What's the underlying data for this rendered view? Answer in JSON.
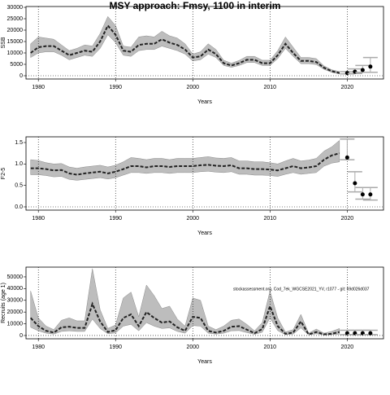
{
  "chart_data": [
    {
      "type": "band-line",
      "title": "MSY approach: Fmsy, 1100 in interim",
      "ylabel": "SSB",
      "xlabel": "Years",
      "xlim": [
        1978.4,
        2024.7
      ],
      "xticks": [
        1980,
        1990,
        2000,
        2010,
        2020
      ],
      "ylim": [
        -1430,
        30360
      ],
      "yticks": [
        0,
        5000,
        10000,
        15000,
        20000,
        25000,
        30000
      ],
      "grid": true,
      "x": [
        1979,
        1980,
        1981,
        1982,
        1983,
        1984,
        1985,
        1986,
        1987,
        1988,
        1989,
        1990,
        1991,
        1992,
        1993,
        1994,
        1995,
        1996,
        1997,
        1998,
        1999,
        2000,
        2001,
        2002,
        2003,
        2004,
        2005,
        2006,
        2007,
        2008,
        2009,
        2010,
        2011,
        2012,
        2013,
        2014,
        2015,
        2016,
        2017,
        2018,
        2019
      ],
      "values": [
        10000,
        12500,
        13000,
        13000,
        11000,
        9000,
        10000,
        11000,
        10500,
        15000,
        22000,
        18000,
        11000,
        10500,
        13500,
        14000,
        14000,
        16000,
        14500,
        13500,
        11500,
        8000,
        8500,
        11500,
        9500,
        5500,
        4500,
        5500,
        7000,
        7000,
        5500,
        5500,
        9000,
        14000,
        10000,
        6500,
        6500,
        6000,
        3500,
        2000,
        1200
      ],
      "lower": [
        8000,
        10000,
        10500,
        10500,
        9000,
        7000,
        8000,
        9000,
        8500,
        12000,
        18000,
        14500,
        9000,
        8500,
        11000,
        11500,
        11500,
        13000,
        12000,
        11000,
        9500,
        6500,
        7000,
        9500,
        8000,
        4500,
        3700,
        4500,
        5800,
        5800,
        4500,
        4500,
        7500,
        12000,
        8500,
        5300,
        5300,
        4900,
        2800,
        1500,
        800
      ],
      "upper": [
        14000,
        17000,
        16500,
        16000,
        13500,
        11000,
        12000,
        13500,
        13000,
        18500,
        26000,
        22000,
        13000,
        12500,
        17000,
        17500,
        17000,
        19500,
        17500,
        16500,
        14000,
        9500,
        10500,
        14000,
        11500,
        6800,
        5500,
        6700,
        8500,
        8500,
        6800,
        6800,
        11000,
        17000,
        12500,
        8000,
        8000,
        7500,
        4300,
        2600,
        1800
      ],
      "projection": {
        "x": [
          2020,
          2021,
          2022,
          2023
        ],
        "values": [
          1200,
          1800,
          2500,
          4000
        ],
        "lower": [
          800,
          1000,
          1500,
          1500
        ],
        "upper": [
          1800,
          3000,
          4500,
          8000
        ]
      }
    },
    {
      "type": "band-line",
      "ylabel": "F2-5",
      "xlabel": "Years",
      "xlim": [
        1978.4,
        2024.7
      ],
      "xticks": [
        1980,
        1990,
        2000,
        2010,
        2020
      ],
      "ylim": [
        -0.076,
        1.633
      ],
      "yticks": [
        {
          "value": 0,
          "label": "0.0"
        },
        0.5,
        {
          "value": 1,
          "label": "1.0"
        },
        1.5
      ],
      "grid": true,
      "x": [
        1979,
        1980,
        1981,
        1982,
        1983,
        1984,
        1985,
        1986,
        1987,
        1988,
        1989,
        1990,
        1991,
        1992,
        1993,
        1994,
        1995,
        1996,
        1997,
        1998,
        1999,
        2000,
        2001,
        2002,
        2003,
        2004,
        2005,
        2006,
        2007,
        2008,
        2009,
        2010,
        2011,
        2012,
        2013,
        2014,
        2015,
        2016,
        2017,
        2018,
        2019
      ],
      "values": [
        0.9,
        0.9,
        0.88,
        0.85,
        0.86,
        0.78,
        0.75,
        0.78,
        0.8,
        0.82,
        0.78,
        0.82,
        0.88,
        0.95,
        0.95,
        0.92,
        0.95,
        0.95,
        0.93,
        0.95,
        0.95,
        0.95,
        0.97,
        0.98,
        0.96,
        0.95,
        0.97,
        0.9,
        0.9,
        0.88,
        0.88,
        0.87,
        0.85,
        0.9,
        0.95,
        0.9,
        0.92,
        0.95,
        1.1,
        1.2,
        1.25
      ],
      "lower": [
        0.75,
        0.75,
        0.73,
        0.7,
        0.71,
        0.64,
        0.62,
        0.64,
        0.66,
        0.68,
        0.65,
        0.68,
        0.74,
        0.8,
        0.8,
        0.78,
        0.8,
        0.8,
        0.78,
        0.8,
        0.8,
        0.8,
        0.82,
        0.83,
        0.81,
        0.8,
        0.82,
        0.76,
        0.76,
        0.74,
        0.74,
        0.73,
        0.71,
        0.76,
        0.8,
        0.76,
        0.78,
        0.8,
        0.95,
        1.02,
        1.05
      ],
      "upper": [
        1.1,
        1.08,
        1.03,
        1.0,
        1.01,
        0.93,
        0.9,
        0.93,
        0.95,
        0.97,
        0.93,
        0.97,
        1.05,
        1.15,
        1.13,
        1.1,
        1.13,
        1.13,
        1.1,
        1.13,
        1.13,
        1.13,
        1.15,
        1.17,
        1.14,
        1.13,
        1.15,
        1.07,
        1.07,
        1.05,
        1.05,
        1.03,
        1.0,
        1.07,
        1.13,
        1.07,
        1.09,
        1.13,
        1.3,
        1.4,
        1.55
      ],
      "projection": {
        "x": [
          2020,
          2021,
          2022,
          2023
        ],
        "values": [
          1.15,
          0.55,
          0.29,
          0.29
        ],
        "lower": [
          1.1,
          0.35,
          0.18,
          0.16
        ],
        "upper": [
          1.58,
          0.82,
          0.45,
          0.45
        ]
      }
    },
    {
      "type": "band-line",
      "ylabel": "Recruits (age 1)",
      "xlabel": "Years",
      "annotation": "stockassessment.org, Cod_7ek_WGCSE2021_YV, r1077 - git: 69d026d037",
      "xlim": [
        1978.4,
        2024.7
      ],
      "xticks": [
        1980,
        1990,
        2000,
        2010,
        2020
      ],
      "ylim": [
        -2800,
        58300
      ],
      "yticks": [
        0,
        10000,
        20000,
        30000,
        40000,
        50000
      ],
      "grid": true,
      "x": [
        1979,
        1980,
        1981,
        1982,
        1983,
        1984,
        1985,
        1986,
        1987,
        1988,
        1989,
        1990,
        1991,
        1992,
        1993,
        1994,
        1995,
        1996,
        1997,
        1998,
        1999,
        2000,
        2001,
        2002,
        2003,
        2004,
        2005,
        2006,
        2007,
        2008,
        2009,
        2010,
        2011,
        2012,
        2013,
        2014,
        2015,
        2016,
        2017,
        2018,
        2019
      ],
      "values": [
        15000,
        8000,
        4000,
        2500,
        7000,
        7500,
        6500,
        6500,
        27000,
        12000,
        3000,
        4500,
        15000,
        18000,
        8000,
        20000,
        15000,
        11000,
        12000,
        7000,
        4000,
        16000,
        15000,
        4000,
        2500,
        4000,
        7500,
        8000,
        5000,
        2000,
        5500,
        25000,
        8000,
        1500,
        2500,
        12000,
        1000,
        3000,
        1000,
        1500,
        3000
      ],
      "lower": [
        7000,
        4000,
        2000,
        1200,
        3500,
        4000,
        3500,
        3500,
        14000,
        6000,
        1500,
        2200,
        8000,
        9500,
        4000,
        11000,
        8000,
        6000,
        6500,
        3500,
        2000,
        8500,
        8000,
        2000,
        1200,
        2000,
        4000,
        4200,
        2500,
        1000,
        2800,
        15000,
        4200,
        700,
        1200,
        6500,
        500,
        1500,
        500,
        700,
        1200
      ],
      "upper": [
        38000,
        15000,
        8000,
        5000,
        13000,
        15000,
        12500,
        12500,
        57000,
        22000,
        6000,
        9000,
        32000,
        37000,
        16000,
        43000,
        34000,
        23000,
        25000,
        14000,
        8000,
        32000,
        30000,
        8000,
        5000,
        8000,
        13000,
        14000,
        9500,
        4000,
        11000,
        38000,
        15000,
        3000,
        5000,
        18000,
        2000,
        5500,
        2000,
        3500,
        6000
      ],
      "projection": {
        "x": [
          2020,
          2021,
          2022,
          2023
        ],
        "values": [
          2000,
          2000,
          2000,
          2000
        ],
        "lower": [
          800,
          800,
          800,
          800
        ],
        "upper": [
          4500,
          4500,
          4500,
          4500
        ]
      }
    }
  ]
}
